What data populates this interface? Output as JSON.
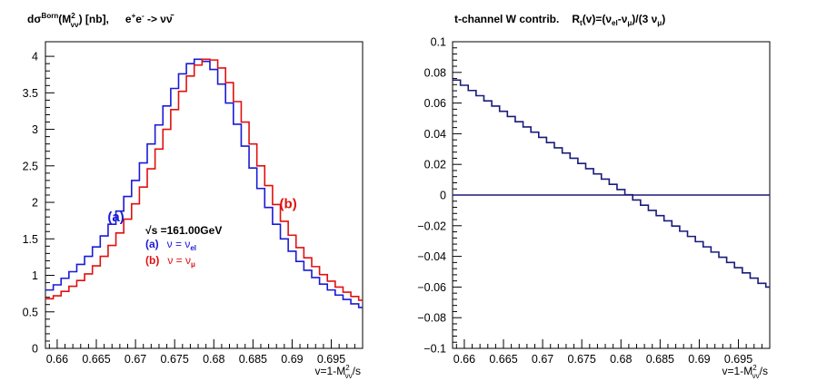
{
  "chart_data": [
    {
      "type": "step",
      "title": "dσ^Born(M²_νν) [nb],    e⁺e⁻ -> νν̄",
      "title_parts": {
        "main": "dσ",
        "sup": "Born",
        "arg": "(M",
        "arg_sup": "2",
        "arg_sub": "νν",
        "unit": ") [nb],",
        "process": "e",
        "process_sup1": "+",
        "process_mid": "e",
        "process_sup2": "-",
        "process_tail": " -> νν̄"
      },
      "xlabel": "v=1-M²_νν/s",
      "xlabel_parts": {
        "main": "v=1-M",
        "sup": "2",
        "sub": "νν",
        "tail": "/s"
      },
      "ylabel": "",
      "xlim": [
        0.6585,
        0.699
      ],
      "ylim": [
        0,
        4.2
      ],
      "x_ticks": [
        0.66,
        0.665,
        0.67,
        0.675,
        0.68,
        0.685,
        0.69,
        0.695
      ],
      "x_tick_labels": [
        "0.66",
        "0.665",
        "0.67",
        "0.675",
        "0.68",
        "0.685",
        "0.69",
        "0.695"
      ],
      "y_ticks": [
        0,
        0.5,
        1,
        1.5,
        2,
        2.5,
        3,
        3.5,
        4
      ],
      "y_tick_labels": [
        "0",
        "0.5",
        "1",
        "1.5",
        "2",
        "2.5",
        "3",
        "3.5",
        "4"
      ],
      "bin_edges": [
        0.6585,
        0.6595,
        0.6605,
        0.6615,
        0.6625,
        0.6635,
        0.6645,
        0.6655,
        0.6665,
        0.6675,
        0.6685,
        0.6695,
        0.6705,
        0.6715,
        0.6725,
        0.6735,
        0.6745,
        0.6755,
        0.6765,
        0.6775,
        0.6785,
        0.6795,
        0.6805,
        0.6815,
        0.6825,
        0.6835,
        0.6845,
        0.6855,
        0.6865,
        0.6875,
        0.6885,
        0.6895,
        0.6905,
        0.6915,
        0.6925,
        0.6935,
        0.6945,
        0.6955,
        0.6965,
        0.6975,
        0.6985,
        0.699
      ],
      "series": [
        {
          "name": "(a) ν = ν_el",
          "color": "#1a1ad6",
          "values": [
            0.8,
            0.87,
            0.96,
            1.05,
            1.15,
            1.26,
            1.39,
            1.54,
            1.7,
            1.88,
            2.08,
            2.3,
            2.54,
            2.8,
            3.06,
            3.32,
            3.56,
            3.76,
            3.9,
            3.96,
            3.93,
            3.82,
            3.62,
            3.36,
            3.07,
            2.77,
            2.47,
            2.19,
            1.93,
            1.7,
            1.5,
            1.33,
            1.19,
            1.07,
            0.97,
            0.88,
            0.8,
            0.73,
            0.67,
            0.61,
            0.56
          ]
        },
        {
          "name": "(b) ν = ν_μ",
          "color": "#e01010",
          "values": [
            0.68,
            0.72,
            0.78,
            0.85,
            0.93,
            1.02,
            1.13,
            1.26,
            1.41,
            1.58,
            1.77,
            1.98,
            2.21,
            2.46,
            2.73,
            3.0,
            3.27,
            3.52,
            3.73,
            3.88,
            3.96,
            3.95,
            3.84,
            3.64,
            3.38,
            3.1,
            2.8,
            2.5,
            2.23,
            1.97,
            1.74,
            1.55,
            1.38,
            1.24,
            1.12,
            1.01,
            0.92,
            0.84,
            0.77,
            0.71,
            0.66
          ]
        }
      ],
      "annotations": [
        {
          "text": "(a)",
          "color": "#1a1ad6",
          "x": 0.6675,
          "y": 1.8
        },
        {
          "text": "(b)",
          "color": "#e01010",
          "x": 0.6895,
          "y": 1.98
        }
      ],
      "legend": {
        "header": "√s =161.00GeV",
        "entries": [
          {
            "tag": "(a)",
            "label": "ν = ν",
            "sub": "el",
            "color": "#1a1ad6"
          },
          {
            "tag": "(b)",
            "label": "ν = ν",
            "sub": "μ",
            "color": "#e01010"
          }
        ]
      }
    },
    {
      "type": "step",
      "title": "t-channel W contrib.    R_t(v)=(ν_el-ν_μ)/(3 ν_μ)",
      "title_parts": {
        "main": "t-channel W contrib.",
        "r": "R",
        "r_sub": "t",
        "r_arg": "(v)=(ν",
        "sub_el": "el",
        "mid": "-ν",
        "sub_mu": "μ",
        "tail": ")/(3  ν",
        "sub_mu2": "μ",
        "close": ")"
      },
      "xlabel": "v=1-M²_νν/s",
      "xlabel_parts": {
        "main": "v=1-M",
        "sup": "2",
        "sub": "νν",
        "tail": "/s"
      },
      "ylabel": "",
      "xlim": [
        0.6585,
        0.699
      ],
      "ylim": [
        -0.1,
        0.1
      ],
      "x_ticks": [
        0.66,
        0.665,
        0.67,
        0.675,
        0.68,
        0.685,
        0.69,
        0.695
      ],
      "x_tick_labels": [
        "0.66",
        "0.665",
        "0.67",
        "0.675",
        "0.68",
        "0.685",
        "0.69",
        "0.695"
      ],
      "y_ticks": [
        -0.1,
        -0.08,
        -0.06,
        -0.04,
        -0.02,
        0,
        0.02,
        0.04,
        0.06,
        0.08,
        0.1
      ],
      "y_tick_labels": [
        "−0.1",
        "−0.08",
        "−0.06",
        "−0.04",
        "−0.02",
        "0",
        "0.02",
        "0.04",
        "0.06",
        "0.08",
        "0.1"
      ],
      "bin_edges": [
        0.6585,
        0.6595,
        0.6605,
        0.6615,
        0.6625,
        0.6635,
        0.6645,
        0.6655,
        0.6665,
        0.6675,
        0.6685,
        0.6695,
        0.6705,
        0.6715,
        0.6725,
        0.6735,
        0.6745,
        0.6755,
        0.6765,
        0.6775,
        0.6785,
        0.6795,
        0.6805,
        0.6815,
        0.6825,
        0.6835,
        0.6845,
        0.6855,
        0.6865,
        0.6875,
        0.6885,
        0.6895,
        0.6905,
        0.6915,
        0.6925,
        0.6935,
        0.6945,
        0.6955,
        0.6965,
        0.6975,
        0.6985,
        0.699
      ],
      "series": [
        {
          "name": "R_t(v)",
          "color": "#1a1a7a",
          "values": [
            0.075,
            0.0716,
            0.0682,
            0.0648,
            0.0614,
            0.058,
            0.0546,
            0.0512,
            0.0478,
            0.0444,
            0.041,
            0.0376,
            0.0342,
            0.0308,
            0.0274,
            0.024,
            0.0206,
            0.0172,
            0.0138,
            0.0104,
            0.007,
            0.0036,
            0.0002,
            -0.0032,
            -0.0066,
            -0.01,
            -0.0134,
            -0.0168,
            -0.0202,
            -0.0236,
            -0.027,
            -0.0304,
            -0.0338,
            -0.0372,
            -0.0406,
            -0.044,
            -0.0474,
            -0.0508,
            -0.0542,
            -0.0576,
            -0.06
          ]
        },
        {
          "name": "zero line",
          "color": "#1a1a7a",
          "values": [
            0
          ]
        }
      ]
    }
  ]
}
